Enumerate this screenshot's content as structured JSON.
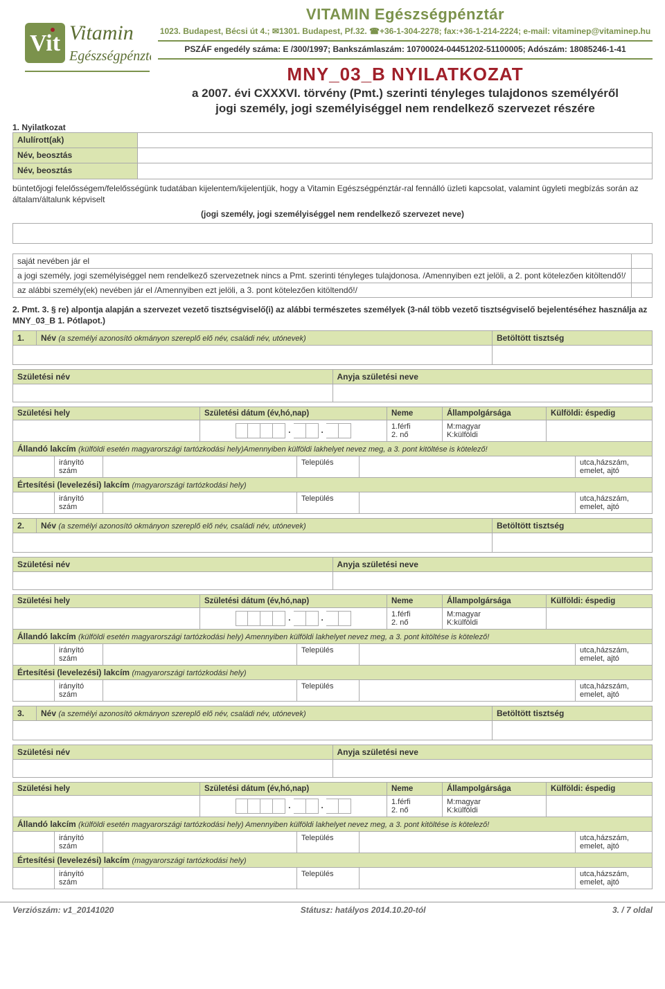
{
  "colors": {
    "green": "#7b924c",
    "greenbg": "#dbe5b1",
    "red": "#a0202a",
    "border": "#aaaaaa"
  },
  "header": {
    "brand": "VITAMIN Egészségpénztár",
    "address": "1023. Budapest, Bécsi út 4.; ✉1301. Budapest, Pf.32. ☎+36-1-304-2278; fax:+36-1-214-2224; e-mail: vitaminep@vitaminep.hu",
    "pszaf": "PSZÁF engedély száma: E /300/1997; Bankszámlaszám: 10700024-04451202-51100005; Adószám: 18085246-1-41",
    "doc_title": "MNY_03_B NYILATKOZAT",
    "subtitle1": "a 2007. évi CXXXVI. törvény (Pmt.) szerinti tényleges tulajdonos személyéről",
    "subtitle2": "jogi személy, jogi személyiséggel nem rendelkező szervezet részére"
  },
  "logo": {
    "top": "Vitamin",
    "bottom": "Egészségpénztár"
  },
  "section1": {
    "num_label": "1. Nyilatkozat",
    "l1": "Alulírott(ak)",
    "l2": "Név, beosztás",
    "l3": "Név, beosztás",
    "para": "büntetőjogi felelősségem/felelősségünk tudatában kijelentem/kijelentjük, hogy a Vitamin Egészségpénztár-ral fennálló üzleti kapcsolat, valamint ügyleti megbízás során az általam/általunk képviselt",
    "center_line": "(jogi személy, jogi személyiséggel nem rendelkező szervezet neve)",
    "s1": "saját nevében jár el",
    "s2": "a jogi személy, jogi személyiséggel nem rendelkező szervezetnek nincs a Pmt. szerinti tényleges tulajdonosa. /Amennyiben ezt jelöli, a 2. pont kötelezően kitöltendő!/",
    "s3": "az alábbi személy(ek) nevében jár el /Amennyiben ezt jelöli, a 3. pont kötelezően kitöltendő!/"
  },
  "section2": {
    "lead": "2.  Pmt. 3. § re) alpontja alapján a szervezet vezető tisztségviselő(i) az alábbi természetes személyek (3-nál több vezető tisztségviselő bejelentéséhez használja az MNY_03_B 1. Pótlapot.)"
  },
  "labels": {
    "name": "Név",
    "name_sub": "(a személyi azonosító okmányon szereplő elő név, családi név, utónevek)",
    "position": "Betöltött tisztség",
    "birth_name": "Születési név",
    "mother_name": "Anyja születési neve",
    "birth_place": "Születési hely",
    "birth_date": "Születési dátum (év,hó,nap)",
    "gender": "Neme",
    "gender_opts": "1.férfi\n2. nő",
    "citizenship": "Állampolgársága",
    "cit_opts": "M:magyar\nK:külföldi",
    "foreign": "Külföldi: éspedig",
    "perm_addr": "Állandó lakcím",
    "perm_addr_sub": "(külföldi esetén magyarországi tartózkodási hely)Amennyiben külföldi lakhelyet nevez meg, a 3. pont kitöltése is kötelező!",
    "perm_addr_sub_sp": "(külföldi esetén magyarországi tartózkodási hely) Amennyiben külföldi lakhelyet nevez meg, a 3. pont kitöltése is kötelező!",
    "mail_addr": "Értesítési (levelezési) lakcím",
    "mail_addr_sub": "(magyarországi tartózkodási hely)",
    "zip": "irányító\nszám",
    "city": "Település",
    "street": "utca,házszám,\nemelet, ajtó"
  },
  "people": [
    {
      "n": "1."
    },
    {
      "n": "2."
    },
    {
      "n": "3."
    }
  ],
  "footer": {
    "left": "Verziószám: v1_20141020",
    "center": "Státusz: hatályos 2014.10.20-tól",
    "right": "3. / 7 oldal"
  }
}
